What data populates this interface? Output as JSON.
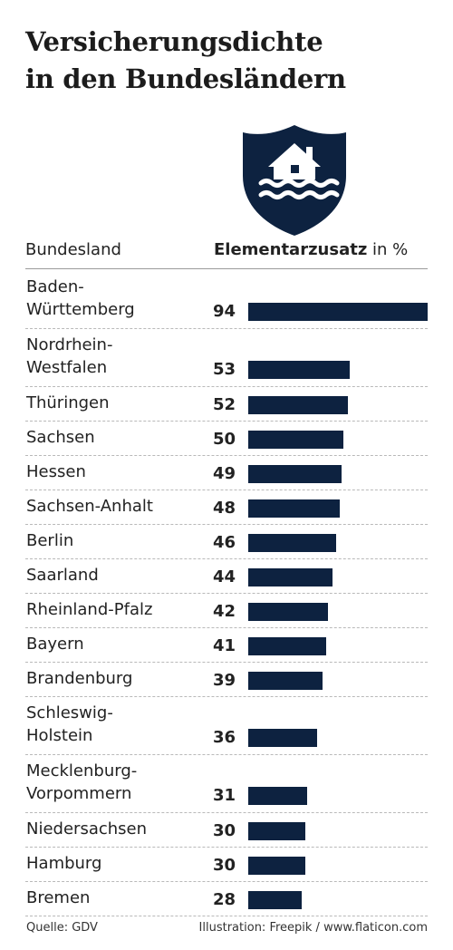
{
  "title_line1": "Versicherungsdichte",
  "title_line2": "in den Bundesländern",
  "icon": "flooded-house-shield-icon",
  "header_region": "Bundesland",
  "header_value_bold": "Elementarzusatz",
  "header_value_rest": " in %",
  "source": "Quelle: GDV",
  "credit": "Illustration: Freepik / www.flaticon.com",
  "colors": {
    "bar": "#0d2240",
    "text": "#222222"
  },
  "chart_data": {
    "type": "bar",
    "orientation": "horizontal",
    "value_header": "Elementarzusatz in %",
    "category_header": "Bundesland",
    "xlim": [
      0,
      94
    ],
    "categories": [
      "Baden-\nWürttemberg",
      "Nordrhein-\nWestfalen",
      "Thüringen",
      "Sachsen",
      "Hessen",
      "Sachsen-Anhalt",
      "Berlin",
      "Saarland",
      "Rheinland-Pfalz",
      "Bayern",
      "Brandenburg",
      "Schleswig-\nHolstein",
      "Mecklenburg-\nVorpommern",
      "Niedersachsen",
      "Hamburg",
      "Bremen"
    ],
    "values": [
      94,
      53,
      52,
      50,
      49,
      48,
      46,
      44,
      42,
      41,
      39,
      36,
      31,
      30,
      30,
      28
    ],
    "data_labels": [
      "94",
      "53",
      "52",
      "50",
      "49",
      "48",
      "46",
      "44",
      "42",
      "41",
      "39",
      "36",
      "31",
      "30",
      "30",
      "28"
    ]
  }
}
